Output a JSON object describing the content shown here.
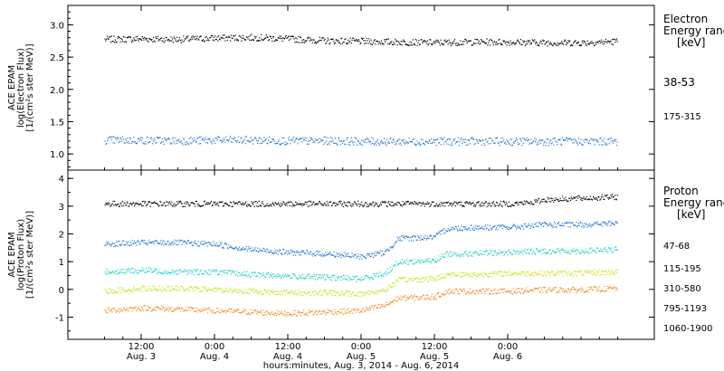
{
  "chart_data": [
    {
      "type": "scatter",
      "panel": "electron",
      "ylabel_lines": [
        "ACE EPAM",
        "log(Electron Flux)",
        "[1/(cm²s ster MeV)]"
      ],
      "ylim": [
        0.75,
        3.3
      ],
      "yticks": [
        "3.0",
        "2.5",
        "2.0",
        "1.5",
        "1.0"
      ],
      "legend_title_lines": [
        "Electron",
        "Energy ranges",
        "[keV]"
      ],
      "series": [
        {
          "name": "38-53",
          "color": "#000000",
          "x": [
            0,
            6,
            12,
            18,
            24,
            30,
            36,
            42,
            48,
            54,
            60,
            66,
            72,
            78,
            84
          ],
          "y": [
            2.78,
            2.79,
            2.78,
            2.8,
            2.81,
            2.79,
            2.76,
            2.75,
            2.74,
            2.73,
            2.74,
            2.74,
            2.73,
            2.73,
            2.75
          ]
        },
        {
          "name": "175-315",
          "color": "#1f77d0",
          "x": [
            0,
            6,
            12,
            18,
            24,
            30,
            36,
            42,
            48,
            54,
            60,
            66,
            72,
            78,
            84
          ],
          "y": [
            1.22,
            1.22,
            1.21,
            1.22,
            1.22,
            1.21,
            1.21,
            1.2,
            1.2,
            1.2,
            1.2,
            1.2,
            1.2,
            1.2,
            1.2
          ]
        }
      ]
    },
    {
      "type": "scatter",
      "panel": "proton",
      "ylabel_lines": [
        "ACE EPAM",
        "log(Proton Flux)",
        "[1/(cm²s ster MeV)]"
      ],
      "ylim": [
        -1.8,
        4.3
      ],
      "yticks": [
        "4",
        "3",
        "2",
        "1",
        "0",
        "-1"
      ],
      "legend_title_lines": [
        "Proton",
        "Energy ranges",
        "[keV]"
      ],
      "series": [
        {
          "name": "47-68",
          "color": "#000000",
          "x": [
            0,
            6,
            12,
            18,
            24,
            30,
            36,
            42,
            48,
            54,
            60,
            66,
            70,
            72,
            78,
            84
          ],
          "y": [
            3.1,
            3.1,
            3.1,
            3.1,
            3.1,
            3.1,
            3.1,
            3.1,
            3.1,
            3.1,
            3.1,
            3.1,
            3.15,
            3.25,
            3.3,
            3.35
          ]
        },
        {
          "name": "115-195",
          "color": "#1f77d0",
          "x": [
            0,
            6,
            12,
            18,
            24,
            30,
            36,
            42,
            46,
            48,
            54,
            56,
            60,
            66,
            72,
            78,
            84
          ],
          "y": [
            1.65,
            1.7,
            1.7,
            1.65,
            1.45,
            1.35,
            1.3,
            1.2,
            1.35,
            1.85,
            1.9,
            2.2,
            2.25,
            2.25,
            2.35,
            2.35,
            2.4
          ]
        },
        {
          "name": "310-580",
          "color": "#20d0c8",
          "x": [
            0,
            6,
            12,
            18,
            24,
            30,
            36,
            42,
            46,
            48,
            54,
            56,
            60,
            66,
            72,
            78,
            84
          ],
          "y": [
            0.65,
            0.7,
            0.65,
            0.65,
            0.55,
            0.5,
            0.45,
            0.4,
            0.6,
            1.0,
            1.05,
            1.3,
            1.3,
            1.35,
            1.4,
            1.4,
            1.45
          ]
        },
        {
          "name": "795-1193",
          "color": "#c8e020",
          "x": [
            0,
            6,
            12,
            18,
            24,
            30,
            36,
            42,
            46,
            48,
            54,
            56,
            60,
            66,
            72,
            78,
            84
          ],
          "y": [
            -0.05,
            0.05,
            0.05,
            0.0,
            -0.05,
            -0.1,
            -0.1,
            -0.15,
            0.0,
            0.35,
            0.4,
            0.55,
            0.55,
            0.6,
            0.6,
            0.6,
            0.65
          ]
        },
        {
          "name": "1060-1900",
          "color": "#f08c20",
          "x": [
            0,
            6,
            12,
            18,
            24,
            30,
            36,
            42,
            46,
            48,
            54,
            56,
            60,
            66,
            72,
            78,
            84
          ],
          "y": [
            -0.75,
            -0.65,
            -0.7,
            -0.75,
            -0.8,
            -0.85,
            -0.8,
            -0.75,
            -0.55,
            -0.3,
            -0.25,
            -0.05,
            -0.05,
            -0.05,
            0.0,
            0.0,
            0.05
          ]
        }
      ]
    }
  ],
  "x_axis": {
    "range_hours": [
      -6,
      90
    ],
    "ticks": [
      {
        "hour": 6,
        "time": "12:00",
        "date": "Aug. 3"
      },
      {
        "hour": 18,
        "time": "0:00",
        "date": "Aug. 4"
      },
      {
        "hour": 30,
        "time": "12:00",
        "date": "Aug. 4"
      },
      {
        "hour": 42,
        "time": "0:00",
        "date": "Aug. 5"
      },
      {
        "hour": 54,
        "time": "12:00",
        "date": "Aug. 5"
      },
      {
        "hour": 66,
        "time": "0:00",
        "date": "Aug. 6"
      }
    ],
    "xlabel": "hours:minutes, Aug.  3, 2014 - Aug.  6, 2014"
  }
}
